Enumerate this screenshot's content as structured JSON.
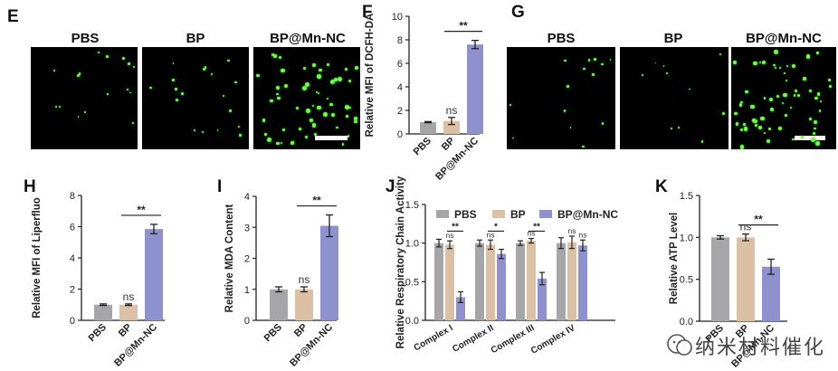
{
  "panel_labels": {
    "E": "E",
    "F": "F",
    "G": "G",
    "H": "H",
    "I": "I",
    "J": "J",
    "K": "K"
  },
  "micrographs": {
    "E": {
      "groups": [
        "PBS",
        "BP",
        "BP@Mn-NC"
      ]
    },
    "G": {
      "groups": [
        "PBS",
        "BP",
        "BP@Mn-NC"
      ]
    }
  },
  "watermark": "纳米材料催化",
  "colors": {
    "PBS": "#a6a6a8",
    "BP": "#dcc0a5",
    "BP@Mn-NC": "#8f90ce"
  },
  "chart_data": [
    {
      "panel": "F",
      "type": "bar",
      "categories": [
        "PBS",
        "BP",
        "BP@Mn-NC"
      ],
      "values": [
        1.0,
        1.1,
        7.6
      ],
      "errors": [
        0.05,
        0.3,
        0.35
      ],
      "ylabel": "Relative MFI of DCFH-DA",
      "ylim": [
        0,
        10
      ],
      "yticks": [
        0,
        2,
        4,
        6,
        8,
        10
      ],
      "annotations": [
        {
          "text": "ns",
          "from": 1
        },
        {
          "text": "**",
          "from": 1,
          "to": 2
        }
      ]
    },
    {
      "panel": "H",
      "type": "bar",
      "categories": [
        "PBS",
        "BP",
        "BP@Mn-NC"
      ],
      "values": [
        1.0,
        1.0,
        5.85
      ],
      "errors": [
        0.05,
        0.05,
        0.3
      ],
      "ylabel": "Relative MFI of Liperfluo",
      "ylim": [
        0,
        8
      ],
      "yticks": [
        0,
        2,
        4,
        6,
        8
      ],
      "annotations": [
        {
          "text": "ns",
          "from": 1
        },
        {
          "text": "**",
          "from": 1,
          "to": 2
        }
      ]
    },
    {
      "panel": "I",
      "type": "bar",
      "categories": [
        "PBS",
        "BP",
        "BP@Mn-NC"
      ],
      "values": [
        1.0,
        1.0,
        3.05
      ],
      "errors": [
        0.08,
        0.08,
        0.35
      ],
      "ylabel": "Relative MDA Content",
      "ylim": [
        0,
        4
      ],
      "yticks": [
        0,
        1,
        2,
        3,
        4
      ],
      "annotations": [
        {
          "text": "ns",
          "from": 1
        },
        {
          "text": "**",
          "from": 1,
          "to": 2
        }
      ]
    },
    {
      "panel": "J",
      "type": "bar",
      "categories": [
        "Complex I",
        "Complex II",
        "Complex III",
        "Complex IV"
      ],
      "series": [
        {
          "name": "PBS",
          "values": [
            1.0,
            1.0,
            1.0,
            1.0
          ],
          "errors": [
            0.05,
            0.04,
            0.03,
            0.07
          ]
        },
        {
          "name": "BP",
          "values": [
            0.98,
            0.98,
            1.03,
            1.01
          ],
          "errors": [
            0.05,
            0.06,
            0.03,
            0.08
          ]
        },
        {
          "name": "BP@Mn-NC",
          "values": [
            0.3,
            0.86,
            0.54,
            0.97
          ],
          "errors": [
            0.07,
            0.06,
            0.08,
            0.07
          ]
        }
      ],
      "ylabel": "Relative Respiratory Chain Activity",
      "ylim": [
        0,
        1.5
      ],
      "yticks": [
        0.0,
        0.5,
        1.0,
        1.5
      ],
      "legend": "top",
      "annotations": [
        {
          "group": 0,
          "items": [
            {
              "text": "ns",
              "bar": 1
            },
            {
              "text": "**",
              "from": 1,
              "to": 2
            }
          ]
        },
        {
          "group": 1,
          "items": [
            {
              "text": "ns",
              "bar": 1
            },
            {
              "text": "*",
              "from": 1,
              "to": 2
            }
          ]
        },
        {
          "group": 2,
          "items": [
            {
              "text": "ns",
              "bar": 1
            },
            {
              "text": "**",
              "from": 1,
              "to": 2
            }
          ]
        },
        {
          "group": 3,
          "items": [
            {
              "text": "ns",
              "bar": 1
            },
            {
              "text": "ns",
              "bar": 2
            }
          ]
        }
      ]
    },
    {
      "panel": "K",
      "type": "bar",
      "categories": [
        "PBS",
        "BP",
        "BP@Mn-NC"
      ],
      "values": [
        1.0,
        1.0,
        0.65
      ],
      "errors": [
        0.02,
        0.04,
        0.09
      ],
      "ylabel": "Relative ATP Level",
      "ylim": [
        0,
        1.5
      ],
      "yticks": [
        0.0,
        0.5,
        1.0,
        1.5
      ],
      "annotations": [
        {
          "text": "ns",
          "from": 1
        },
        {
          "text": "**",
          "from": 1,
          "to": 2
        }
      ]
    }
  ]
}
